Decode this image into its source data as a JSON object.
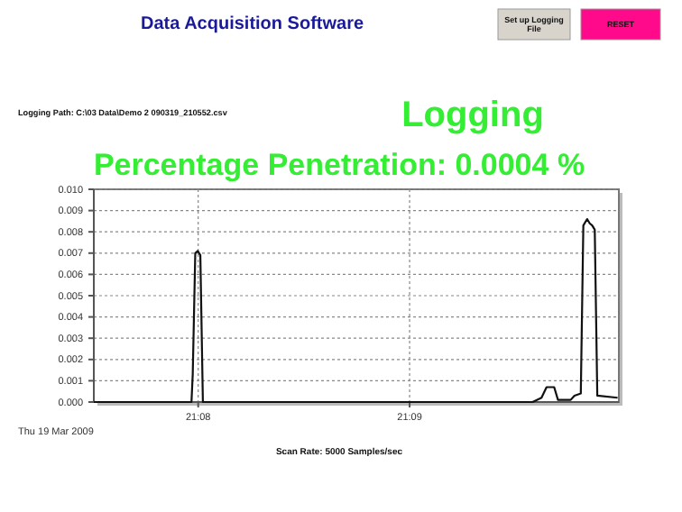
{
  "chart_data": {
    "type": "line",
    "title": "Percentage Penetration: 0.0004 %",
    "subtitle": "Logging",
    "annotations": [
      "Data Acquisition Software",
      "Set up Logging File",
      "RESET",
      "Logging Path: C:\\03 Data\\Demo 2 090319_210552.csv",
      "Thu 19 Mar 2009",
      "Scan Rate: 5000 Samples/sec"
    ],
    "x": [
      21.1251,
      21.1319,
      21.1328,
      21.1329,
      21.1331,
      21.1333,
      21.1335,
      21.1337,
      21.134,
      21.1597,
      21.1604,
      21.1608,
      21.1614,
      21.1617,
      21.1627,
      21.163,
      21.1635,
      21.1637,
      21.164,
      21.1642,
      21.1644,
      21.1646,
      21.1648,
      21.1664
    ],
    "series": [
      {
        "color": "#111111",
        "values": [
          0,
          0,
          0,
          0.0013,
          0.007,
          0.0071,
          0.0069,
          0,
          0,
          0,
          0.0002,
          0.0007,
          0.0007,
          0.0001,
          0.0001,
          0.0003,
          0.0004,
          0.0083,
          0.0086,
          0.0084,
          0.0083,
          0.0081,
          0.0003,
          0.0002
        ]
      }
    ],
    "xlim": [
      21.1251,
      21.1665
    ],
    "xticks": [
      {
        "value": 21.13333,
        "label": "21:08"
      },
      {
        "value": 21.15,
        "label": "21:09"
      }
    ],
    "ylim": [
      0,
      0.01
    ],
    "yticks": [
      {
        "value": 0,
        "label": "0.000"
      },
      0.001,
      0.002,
      0.003,
      0.004,
      0.005,
      0.006,
      0.007,
      0.008,
      0.009,
      {
        "value": 0.01,
        "label": "0.010"
      }
    ],
    "grid": true,
    "line_style": "solid",
    "marker": "none"
  }
}
